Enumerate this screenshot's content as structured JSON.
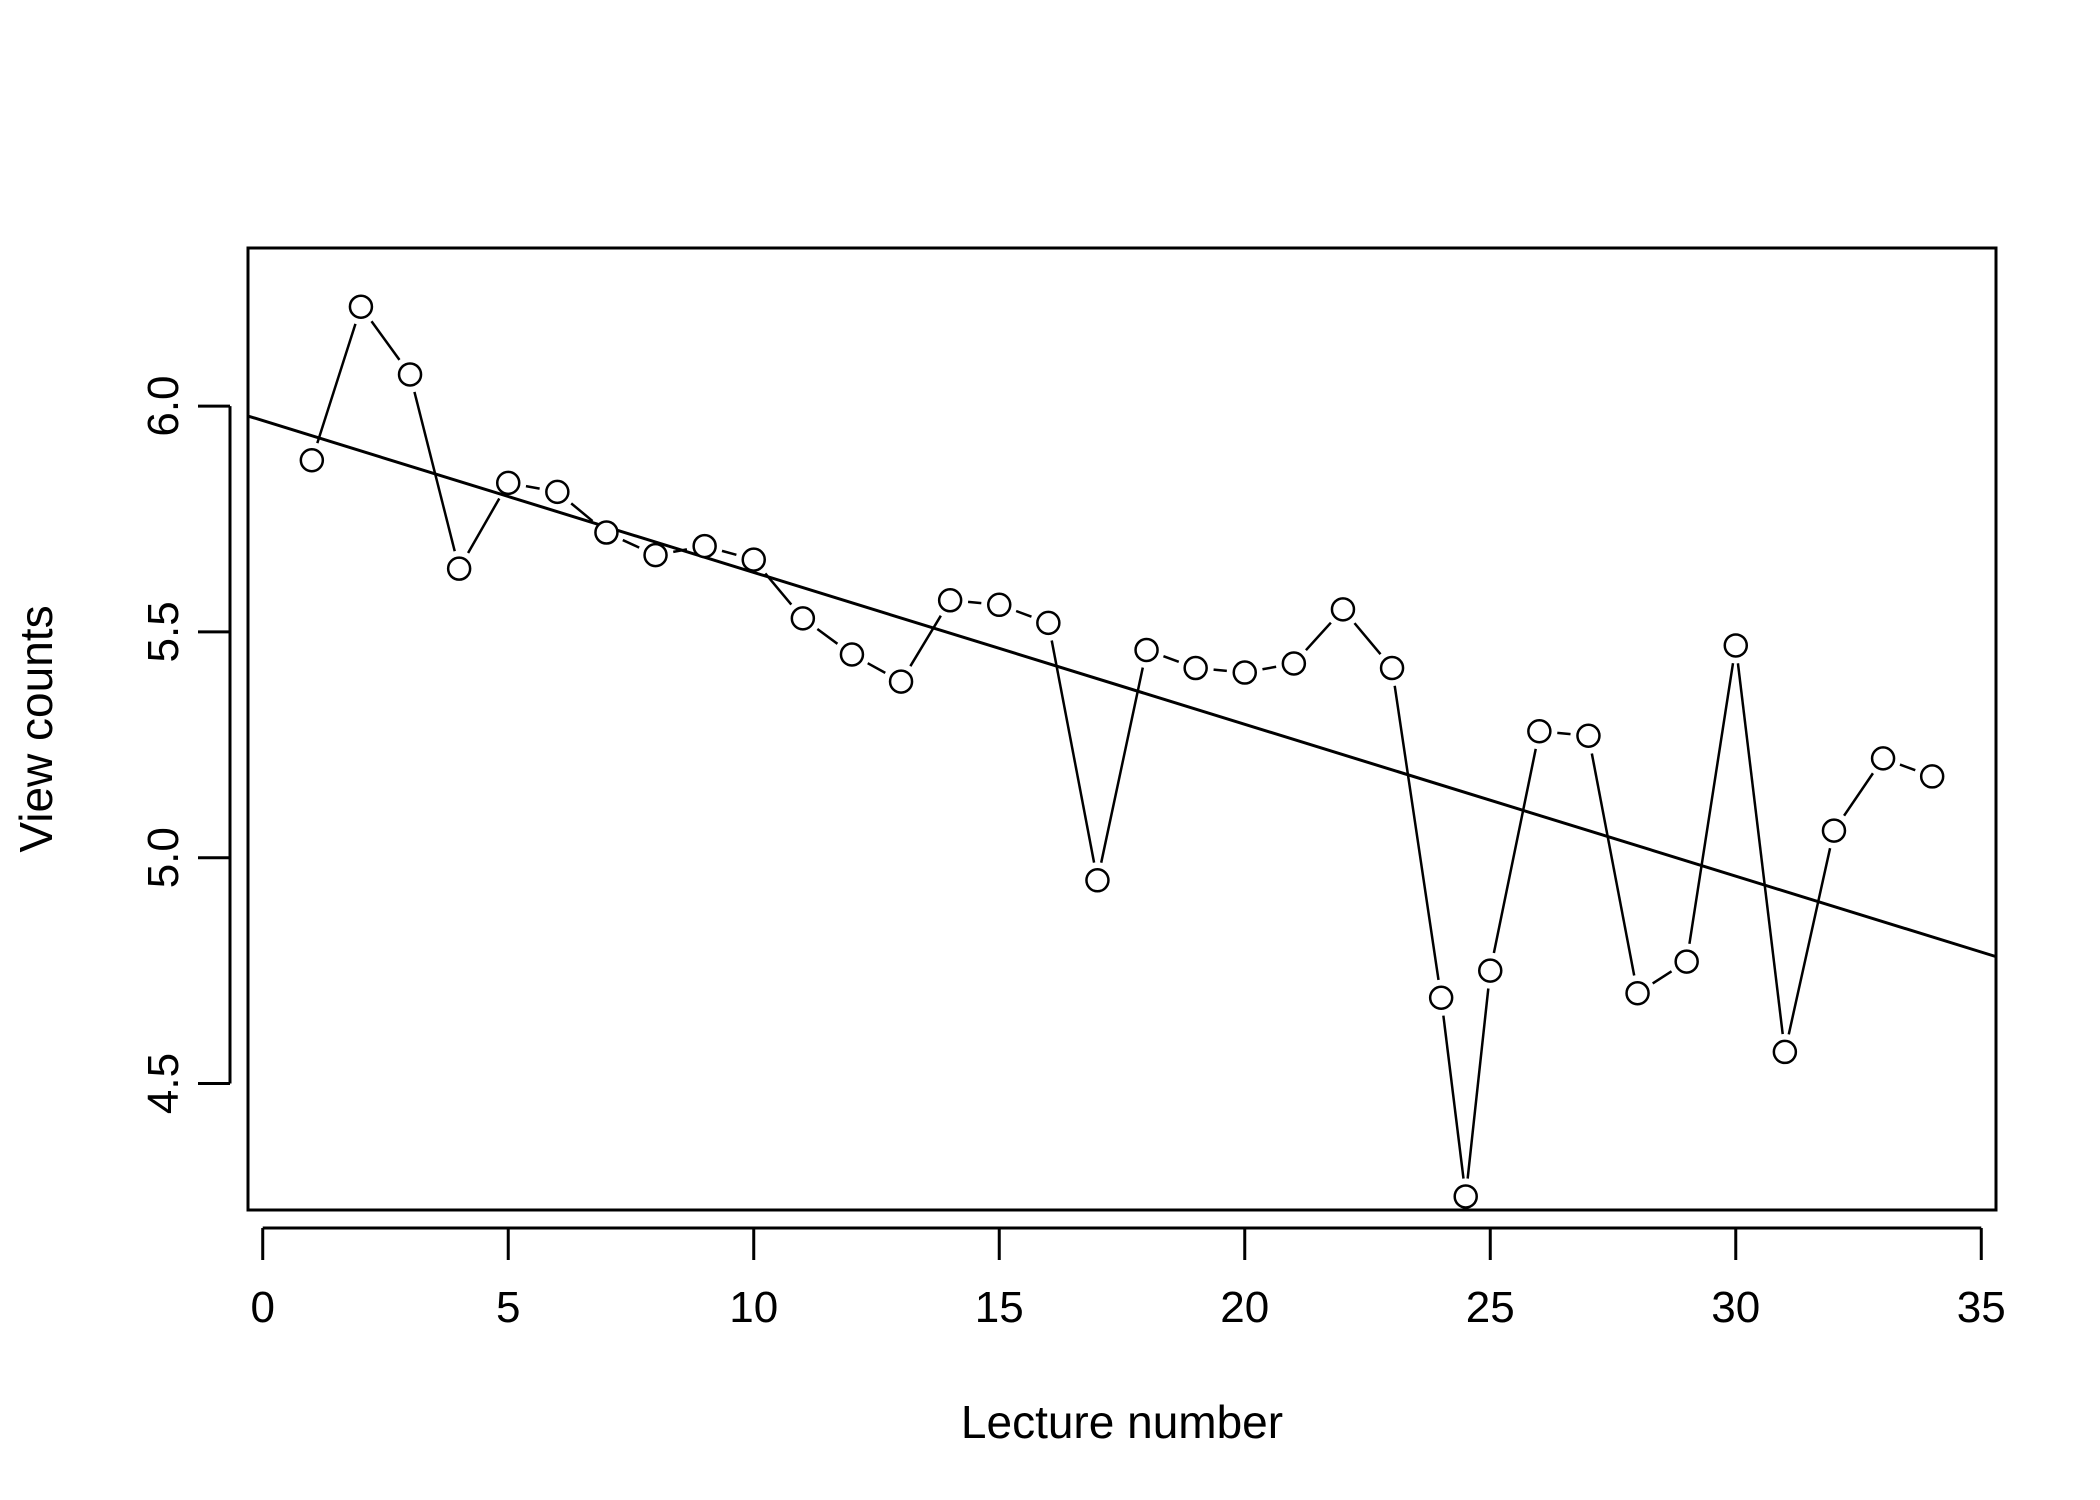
{
  "chart_data": {
    "type": "scatter",
    "title": "",
    "xlabel": "Lecture number",
    "ylabel": "View counts",
    "xlim": [
      -0.3,
      35.3
    ],
    "ylim": [
      4.22,
      6.35
    ],
    "x_ticks": [
      0,
      5,
      10,
      15,
      20,
      25,
      30,
      35
    ],
    "x_tick_labels": [
      "0",
      "5",
      "10",
      "15",
      "20",
      "25",
      "30",
      "35"
    ],
    "y_ticks": [
      4.5,
      5.0,
      5.5,
      6.0
    ],
    "y_tick_labels": [
      "4.5",
      "5.0",
      "5.5",
      "6.0"
    ],
    "grid": false,
    "legend": "none",
    "points": {
      "x": [
        1,
        2,
        3,
        4,
        5,
        6,
        7,
        8,
        9,
        10,
        11,
        12,
        13,
        14,
        15,
        16,
        17,
        18,
        19,
        20,
        21,
        22,
        23,
        24,
        24.5,
        25,
        26,
        27,
        28,
        29,
        30,
        31,
        32,
        33,
        34
      ],
      "y": [
        5.88,
        6.22,
        6.07,
        5.64,
        5.83,
        5.81,
        5.72,
        5.67,
        5.69,
        5.66,
        5.53,
        5.45,
        5.39,
        5.57,
        5.56,
        5.52,
        4.95,
        5.46,
        5.42,
        5.41,
        5.43,
        5.55,
        5.42,
        4.69,
        4.25,
        4.75,
        5.28,
        5.27,
        4.7,
        4.77,
        5.47,
        4.57,
        5.06,
        5.22,
        5.18
      ]
    },
    "trend_line": {
      "x": [
        -0.3,
        35.3
      ],
      "y": [
        5.978,
        4.781
      ]
    },
    "connect_points": true,
    "marker": "open-circle"
  }
}
